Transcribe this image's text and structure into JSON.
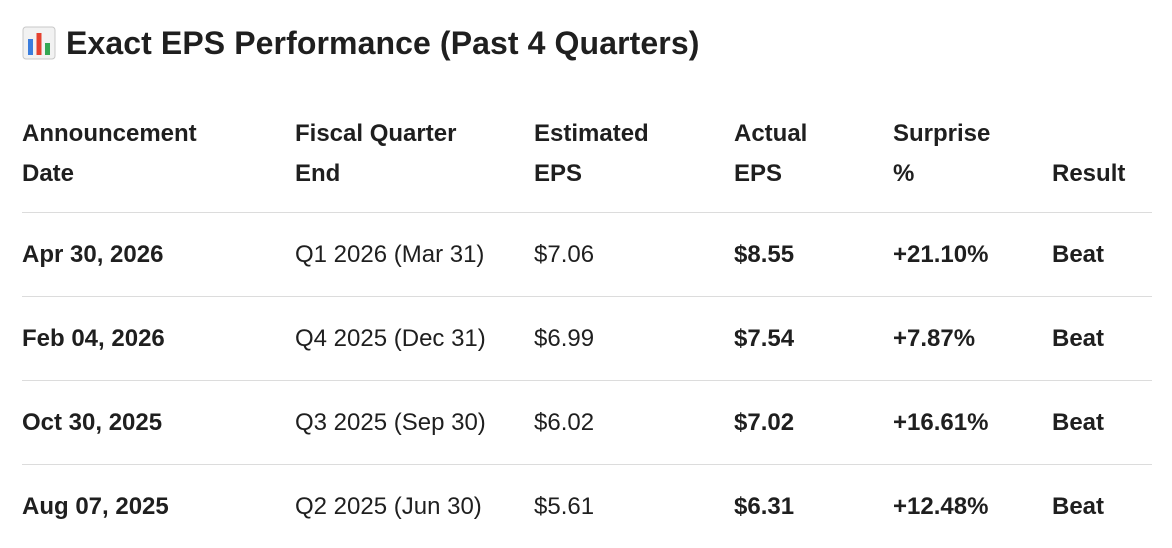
{
  "title": {
    "icon": "bar-chart-icon",
    "text": "Exact EPS Performance (Past 4 Quarters)"
  },
  "table": {
    "headers": {
      "announcement_date": [
        "Announcement",
        "Date"
      ],
      "fiscal_quarter_end": [
        "Fiscal Quarter",
        "End"
      ],
      "estimated_eps": [
        "Estimated",
        "EPS"
      ],
      "actual_eps": [
        "Actual",
        "EPS"
      ],
      "surprise_pct": [
        "Surprise",
        "%"
      ],
      "result": [
        "",
        "Result"
      ]
    },
    "rows": [
      {
        "announcement_date": "Apr 30, 2026",
        "fiscal_quarter_end": "Q1 2026 (Mar 31)",
        "estimated_eps": "$7.06",
        "actual_eps": "$8.55",
        "surprise_pct": "+21.10%",
        "result": "Beat"
      },
      {
        "announcement_date": "Feb 04, 2026",
        "fiscal_quarter_end": "Q4 2025 (Dec 31)",
        "estimated_eps": "$6.99",
        "actual_eps": "$7.54",
        "surprise_pct": "+7.87%",
        "result": "Beat"
      },
      {
        "announcement_date": "Oct 30, 2025",
        "fiscal_quarter_end": "Q3 2025 (Sep 30)",
        "estimated_eps": "$6.02",
        "actual_eps": "$7.02",
        "surprise_pct": "+16.61%",
        "result": "Beat"
      },
      {
        "announcement_date": "Aug 07, 2025",
        "fiscal_quarter_end": "Q2 2025 (Jun 30)",
        "estimated_eps": "$5.61",
        "actual_eps": "$6.31",
        "surprise_pct": "+12.48%",
        "result": "Beat"
      }
    ]
  },
  "colors": {
    "text": "#1f1f1f",
    "divider": "#dcdcdc",
    "icon_bars": [
      "#3b7ddd",
      "#e5412f",
      "#34a853"
    ]
  }
}
